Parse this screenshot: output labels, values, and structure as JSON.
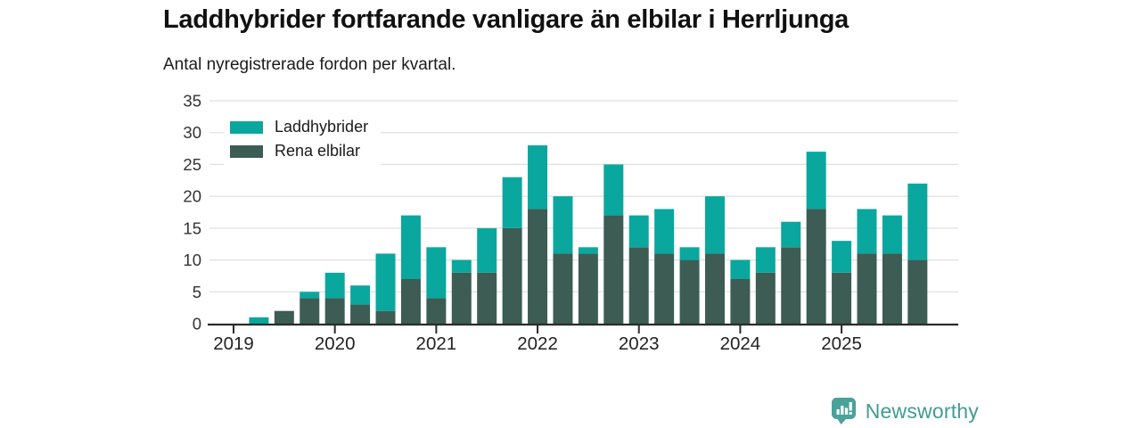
{
  "header": {
    "title": "Laddhybrider fortfarande vanligare än elbilar i Herrljunga",
    "subtitle": "Antal nyregistrerade fordon per kvartal."
  },
  "colors": {
    "laddhybrider": "#0aa79e",
    "rena_elbilar": "#3c5c54",
    "grid": "#e1e1e1",
    "axis": "#2b2b2b",
    "ytick_text": "#333333",
    "xtick_text": "#222222",
    "brand": "#3f9c95"
  },
  "legend": {
    "items": [
      {
        "label": "Laddhybrider",
        "color": "#0aa79e"
      },
      {
        "label": "Rena elbilar",
        "color": "#3c5c54"
      }
    ]
  },
  "chart_data": {
    "type": "bar",
    "stacked": true,
    "title": "Laddhybrider fortfarande vanligare än elbilar i Herrljunga",
    "subtitle": "Antal nyregistrerade fordon per kvartal.",
    "xlabel": "",
    "ylabel": "",
    "ylim": [
      0,
      35
    ],
    "yticks": [
      0,
      5,
      10,
      15,
      20,
      25,
      30,
      35
    ],
    "grid": true,
    "legend_position": "top-left",
    "categories": [
      "2019 Q1",
      "2019 Q2",
      "2019 Q3",
      "2019 Q4",
      "2020 Q1",
      "2020 Q2",
      "2020 Q3",
      "2020 Q4",
      "2021 Q1",
      "2021 Q2",
      "2021 Q3",
      "2021 Q4",
      "2022 Q1",
      "2022 Q2",
      "2022 Q3",
      "2022 Q4",
      "2023 Q1",
      "2023 Q2",
      "2023 Q3",
      "2023 Q4",
      "2024 Q1",
      "2024 Q2",
      "2024 Q3",
      "2024 Q4",
      "2025 Q1",
      "2025 Q2",
      "2025 Q3",
      "2025 Q4"
    ],
    "xticklabels": [
      "2019",
      "2020",
      "2021",
      "2022",
      "2023",
      "2024",
      "2025"
    ],
    "xtick_positions": [
      0,
      4,
      8,
      12,
      16,
      20,
      24
    ],
    "series": [
      {
        "name": "Rena elbilar",
        "color": "#3c5c54",
        "values": [
          0,
          0,
          2,
          4,
          4,
          3,
          2,
          7,
          4,
          8,
          8,
          15,
          18,
          11,
          11,
          17,
          12,
          11,
          10,
          11,
          7,
          8,
          12,
          18,
          8,
          11,
          11,
          10
        ]
      },
      {
        "name": "Laddhybrider",
        "color": "#0aa79e",
        "values": [
          0,
          1,
          0,
          1,
          4,
          3,
          9,
          10,
          8,
          2,
          7,
          8,
          10,
          9,
          1,
          8,
          5,
          7,
          2,
          9,
          3,
          4,
          4,
          9,
          5,
          7,
          6,
          12
        ]
      }
    ],
    "totals": [
      0,
      1,
      2,
      5,
      8,
      6,
      11,
      17,
      12,
      10,
      15,
      23,
      28,
      20,
      12,
      25,
      17,
      18,
      12,
      20,
      10,
      12,
      16,
      27,
      13,
      18,
      17,
      22
    ]
  },
  "footer": {
    "brand": "Newsworthy"
  }
}
